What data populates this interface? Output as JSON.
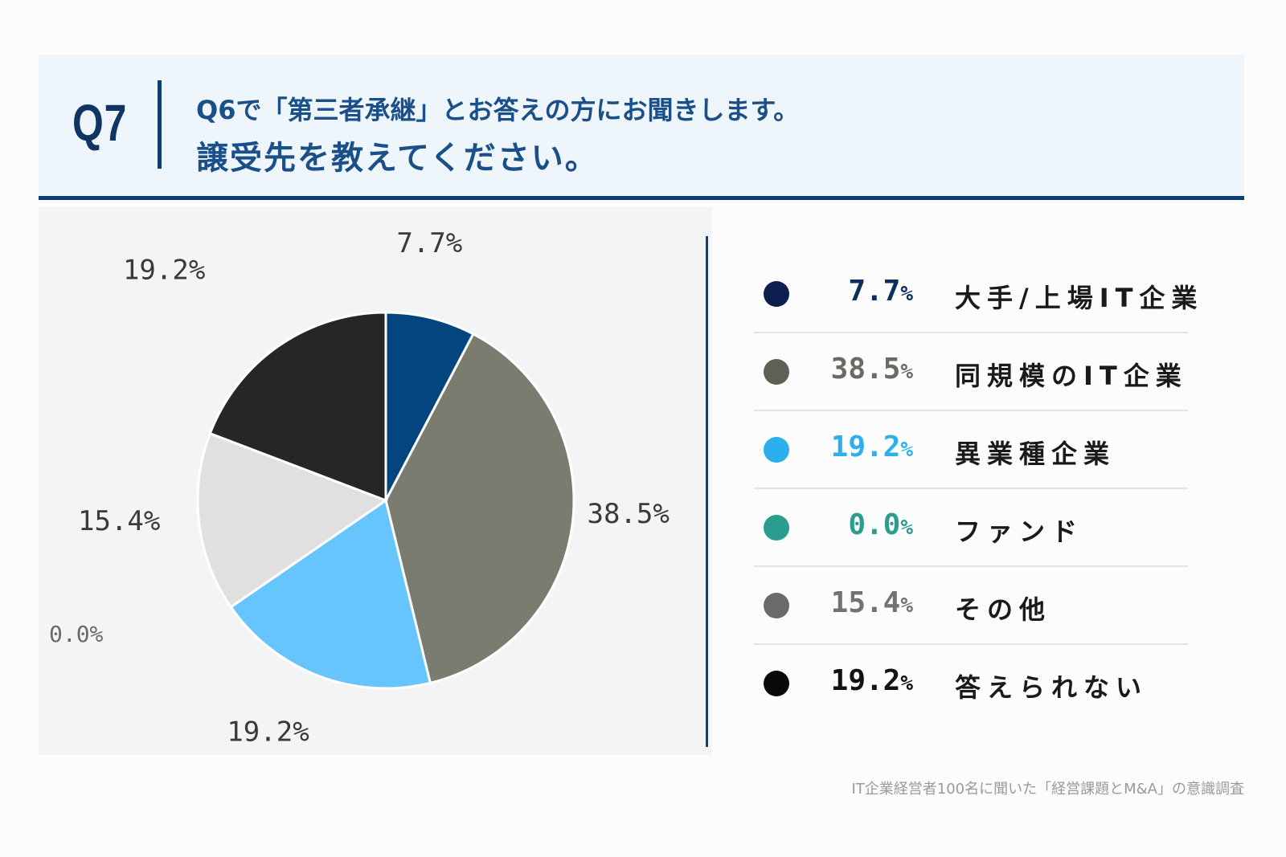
{
  "header": {
    "qnum": "Q7",
    "line1": "Q6で「第三者承継」とお答えの方にお聞きします。",
    "line2": "譲受先を教えてください。"
  },
  "chart_data": {
    "type": "pie",
    "title": "譲受先を教えてください。",
    "categories": [
      "大手/上場IT企業",
      "同規模のIT企業",
      "異業種企業",
      "ファンド",
      "その他",
      "答えられない"
    ],
    "values": [
      7.7,
      38.5,
      19.2,
      0.0,
      15.4,
      19.2
    ],
    "labels": [
      "7.7%",
      "38.5%",
      "19.2%",
      "0.0%",
      "15.4%",
      "19.2%"
    ],
    "pie_colors": [
      "#03457f",
      "#7b7c70",
      "#66c5fc",
      "#2a9d8f",
      "#e0e0e0",
      "#262626"
    ],
    "legend_colors": [
      "#0d1f4f",
      "#5f5f55",
      "#2bb0ec",
      "#2a9d8f",
      "#6a6a6a",
      "#0a0a0a"
    ],
    "legend_text_colors": [
      "#0d2f5c",
      "#6b6b63",
      "#2bb0ec",
      "#2a9d8f",
      "#727272",
      "#111111"
    ],
    "start_angle": 0,
    "direction": "clockwise"
  },
  "legend": [
    {
      "pct": "7.7",
      "unit": "%",
      "label": "大手/上場IT企業"
    },
    {
      "pct": "38.5",
      "unit": "%",
      "label": "同規模のIT企業"
    },
    {
      "pct": "19.2",
      "unit": "%",
      "label": "異業種企業"
    },
    {
      "pct": "0.0",
      "unit": "%",
      "label": "ファンド"
    },
    {
      "pct": "15.4",
      "unit": "%",
      "label": "その他"
    },
    {
      "pct": "19.2",
      "unit": "%",
      "label": "答えられない"
    }
  ],
  "source": "IT企業経営者100名に聞いた「経営課題とM&A」の意識調査"
}
